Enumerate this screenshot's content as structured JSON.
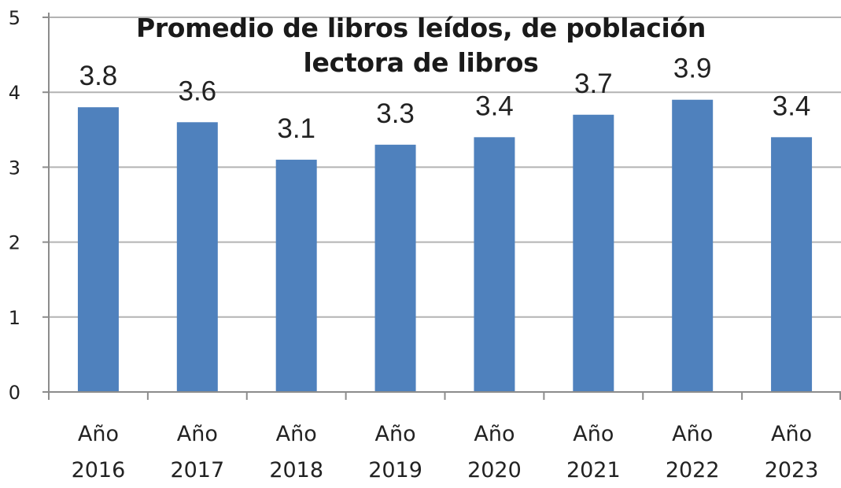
{
  "chart_data": {
    "type": "bar",
    "title_lines": [
      "Promedio de libros leídos, de población",
      "lectora de libros"
    ],
    "categories": [
      [
        "Año",
        "2016"
      ],
      [
        "Año",
        "2017"
      ],
      [
        "Año",
        "2018"
      ],
      [
        "Año",
        "2019"
      ],
      [
        "Año",
        "2020"
      ],
      [
        "Año",
        "2021"
      ],
      [
        "Año",
        "2022"
      ],
      [
        "Año",
        "2023"
      ]
    ],
    "values": [
      3.8,
      3.6,
      3.1,
      3.3,
      3.4,
      3.7,
      3.9,
      3.4
    ],
    "value_labels": [
      "3.8",
      "3.6",
      "3.1",
      "3.3",
      "3.4",
      "3.7",
      "3.9",
      "3.4"
    ],
    "ylim": [
      0,
      5
    ],
    "yticks": [
      "0",
      "1",
      "2",
      "3",
      "4",
      "5"
    ],
    "xlabel": "",
    "ylabel": "",
    "grid": true,
    "legend": "none",
    "colors": {
      "bar": "#4f81bd",
      "grid": "#b3b3b3",
      "axis": "#8c8c8c"
    }
  }
}
